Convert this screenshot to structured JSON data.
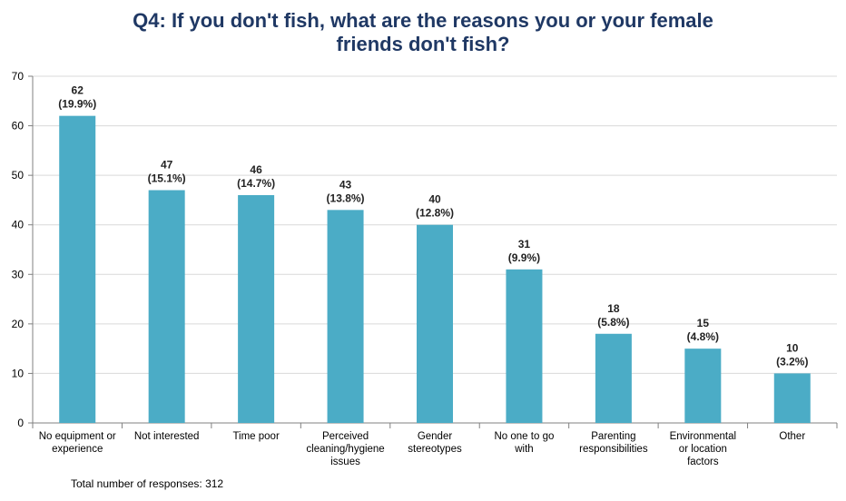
{
  "chart_data": {
    "type": "bar",
    "title_lines": [
      "Q4:  If you don't fish, what are the reasons you or your female",
      "friends don't fish?"
    ],
    "categories": [
      [
        "No equipment or",
        "experience"
      ],
      [
        "Not interested"
      ],
      [
        "Time poor"
      ],
      [
        "Perceived",
        "cleaning/hygiene",
        "issues"
      ],
      [
        "Gender",
        "stereotypes"
      ],
      [
        "No one to go",
        "with"
      ],
      [
        "Parenting",
        "responsibilities"
      ],
      [
        "Environmental",
        "or location",
        "factors"
      ],
      [
        "Other"
      ]
    ],
    "values": [
      62,
      47,
      46,
      43,
      40,
      31,
      18,
      15,
      10
    ],
    "percent_labels": [
      "(19.9%)",
      "(15.1%)",
      "(14.7%)",
      "(13.8%)",
      "(12.8%)",
      "(9.9%)",
      "(5.8%)",
      "(4.8%)",
      "(3.2%)"
    ],
    "ylim": [
      0,
      70
    ],
    "yticks": [
      0,
      10,
      20,
      30,
      40,
      50,
      60,
      70
    ],
    "grid": true,
    "bar_color": "#4bacc6",
    "grid_color": "#d9d9d9",
    "xlabel": "",
    "ylabel": ""
  },
  "footnote": "Total number of responses:  312"
}
